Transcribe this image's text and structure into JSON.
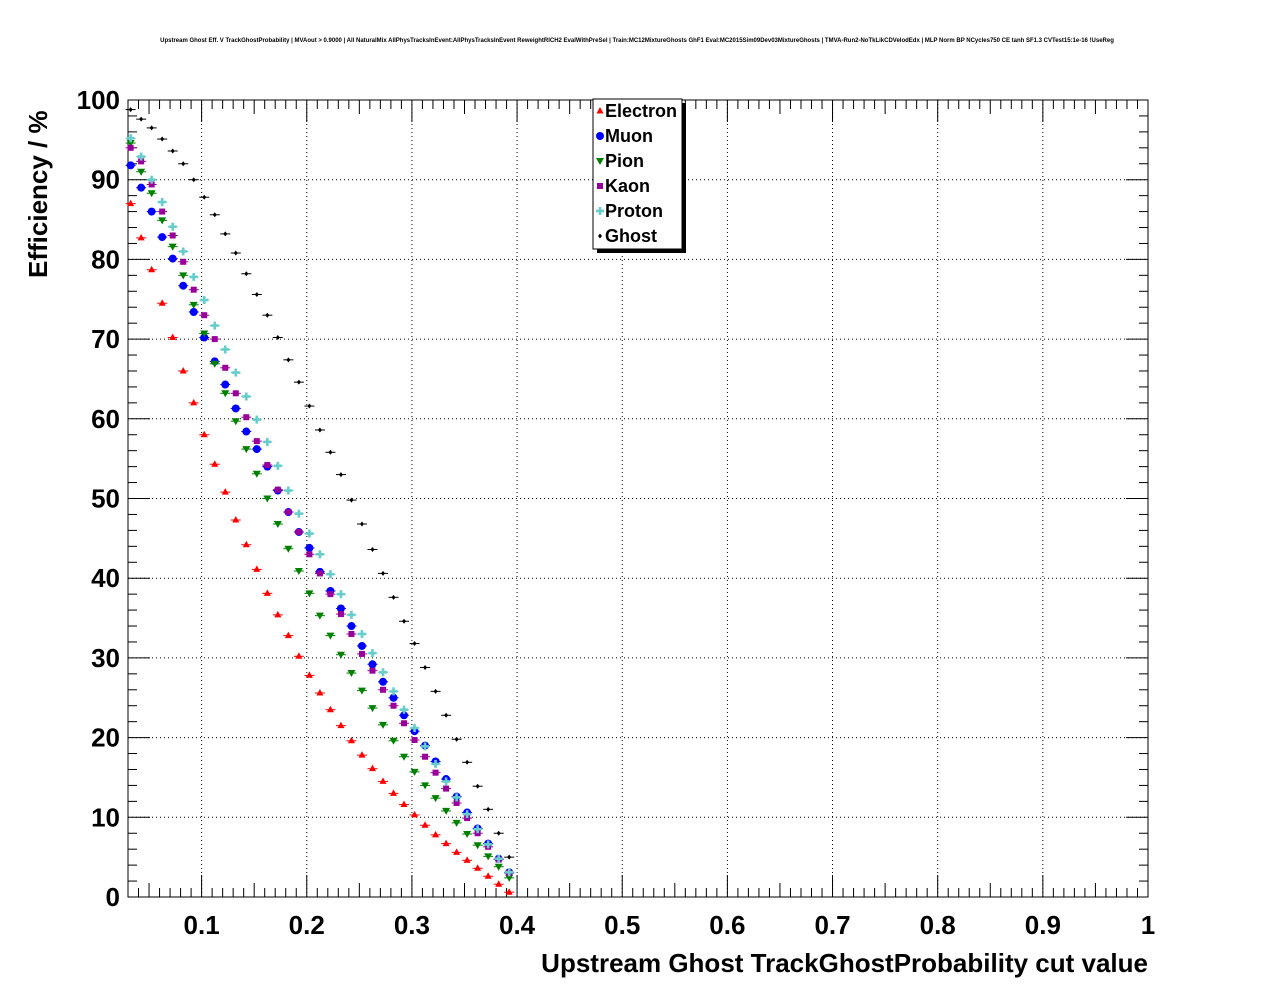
{
  "chart_data": {
    "type": "scatter",
    "title": "Upstream Ghost Eff. V TrackGhostProbability | MVAout > 0.9000 | All NaturalMix AllPhysTracksInEvent:AllPhysTracksInEvent ReweightRICH2 EvalWithPreSel | Train:MC12MixtureGhosts GhF1 Eval:MC2015Sim09Dev03MixtureGhosts | TMVA-Run2-NoTkLikCDVelodEdx | MLP Norm BP NCycles750 CE tanh SF1.3 CVTest15:1e-16 !UseReg",
    "xlabel": "Upstream Ghost TrackGhostProbability cut value",
    "ylabel": "Efficiency / %",
    "xlim": [
      0.03,
      1.0
    ],
    "ylim": [
      0,
      100
    ],
    "xticks": [
      0.1,
      0.2,
      0.3,
      0.4,
      0.5,
      0.6,
      0.7,
      0.8,
      0.9,
      1.0
    ],
    "xtick_labels": [
      "0.1",
      "0.2",
      "0.3",
      "0.4",
      "0.5",
      "0.6",
      "0.7",
      "0.8",
      "0.9",
      "1"
    ],
    "yticks": [
      0,
      10,
      20,
      30,
      40,
      50,
      60,
      70,
      80,
      90,
      100
    ],
    "ytick_labels": [
      "0",
      "10",
      "20",
      "30",
      "40",
      "50",
      "60",
      "70",
      "80",
      "90",
      "100"
    ],
    "grid": true,
    "legend_position": "top-center",
    "x": [
      0.0325,
      0.0425,
      0.0525,
      0.0625,
      0.0725,
      0.0825,
      0.0925,
      0.1025,
      0.1125,
      0.1225,
      0.1325,
      0.1425,
      0.1525,
      0.1625,
      0.1725,
      0.1825,
      0.1925,
      0.2025,
      0.2125,
      0.2225,
      0.2325,
      0.2425,
      0.2525,
      0.2625,
      0.2725,
      0.2825,
      0.2925,
      0.3025,
      0.3125,
      0.3225,
      0.3325,
      0.3425,
      0.3525,
      0.3625,
      0.3725,
      0.3825,
      0.3925
    ],
    "series": [
      {
        "name": "Electron",
        "color": "#ff0000",
        "marker": "triangle-up",
        "values": [
          87.0,
          82.7,
          78.7,
          74.5,
          70.2,
          66.0,
          62.0,
          58.0,
          54.3,
          50.8,
          47.3,
          44.2,
          41.1,
          38.1,
          35.4,
          32.8,
          30.2,
          27.8,
          25.6,
          23.5,
          21.5,
          19.6,
          17.8,
          16.1,
          14.5,
          13.0,
          11.6,
          10.3,
          9.0,
          7.8,
          6.7,
          5.6,
          4.6,
          3.6,
          2.6,
          1.6,
          0.6
        ]
      },
      {
        "name": "Muon",
        "color": "#0000ff",
        "marker": "circle",
        "values": [
          91.8,
          89.0,
          86.0,
          82.8,
          80.1,
          76.7,
          73.4,
          70.2,
          67.2,
          64.3,
          61.3,
          58.4,
          56.2,
          54.0,
          51.0,
          48.3,
          45.8,
          43.8,
          40.8,
          38.4,
          36.2,
          34.0,
          31.5,
          29.2,
          27.0,
          25.0,
          22.8,
          20.8,
          19.0,
          17.0,
          14.8,
          12.6,
          10.6,
          8.6,
          6.7,
          4.8,
          3.1
        ]
      },
      {
        "name": "Pion",
        "color": "#008000",
        "marker": "triangle-down",
        "values": [
          94.6,
          91.0,
          88.3,
          84.9,
          81.6,
          78.0,
          74.3,
          70.7,
          66.9,
          63.2,
          59.7,
          56.2,
          53.1,
          50.0,
          46.8,
          43.7,
          40.9,
          38.1,
          35.3,
          32.8,
          30.4,
          28.1,
          25.9,
          23.7,
          21.6,
          19.6,
          17.6,
          15.7,
          14.0,
          12.4,
          10.8,
          9.3,
          7.9,
          6.5,
          5.1,
          3.8,
          2.4
        ]
      },
      {
        "name": "Kaon",
        "color": "#990099",
        "marker": "square",
        "values": [
          94.0,
          92.3,
          89.4,
          86.0,
          83.0,
          79.7,
          76.2,
          73.0,
          70.0,
          66.4,
          63.2,
          60.2,
          57.2,
          54.2,
          51.1,
          48.3,
          45.8,
          43.0,
          40.6,
          38.0,
          35.5,
          33.0,
          30.5,
          28.4,
          26.0,
          24.0,
          21.8,
          19.7,
          17.6,
          15.6,
          13.6,
          11.8,
          9.9,
          8.0,
          6.3,
          4.7,
          3.0
        ]
      },
      {
        "name": "Proton",
        "color": "#66cccc",
        "marker": "cross",
        "values": [
          95.2,
          92.9,
          90.0,
          87.2,
          84.1,
          81.0,
          77.8,
          74.9,
          71.7,
          68.7,
          65.8,
          62.8,
          59.9,
          57.1,
          54.1,
          51.0,
          48.1,
          45.6,
          43.0,
          40.5,
          38.0,
          35.4,
          33.0,
          30.6,
          28.2,
          25.8,
          23.5,
          21.2,
          18.9,
          16.7,
          14.5,
          12.5,
          10.4,
          8.5,
          6.6,
          4.8,
          3.1
        ]
      },
      {
        "name": "Ghost",
        "color": "#000000",
        "marker": "small-diamond",
        "values": [
          98.8,
          97.6,
          96.5,
          95.1,
          93.6,
          92.0,
          90.0,
          87.8,
          85.6,
          83.2,
          80.8,
          78.2,
          75.6,
          73.0,
          70.2,
          67.4,
          64.6,
          61.6,
          58.6,
          55.8,
          53.0,
          49.8,
          46.8,
          43.6,
          40.6,
          37.6,
          34.6,
          31.8,
          28.8,
          25.8,
          22.8,
          19.8,
          16.9,
          13.9,
          11.0,
          8.0,
          5.0
        ]
      }
    ]
  }
}
